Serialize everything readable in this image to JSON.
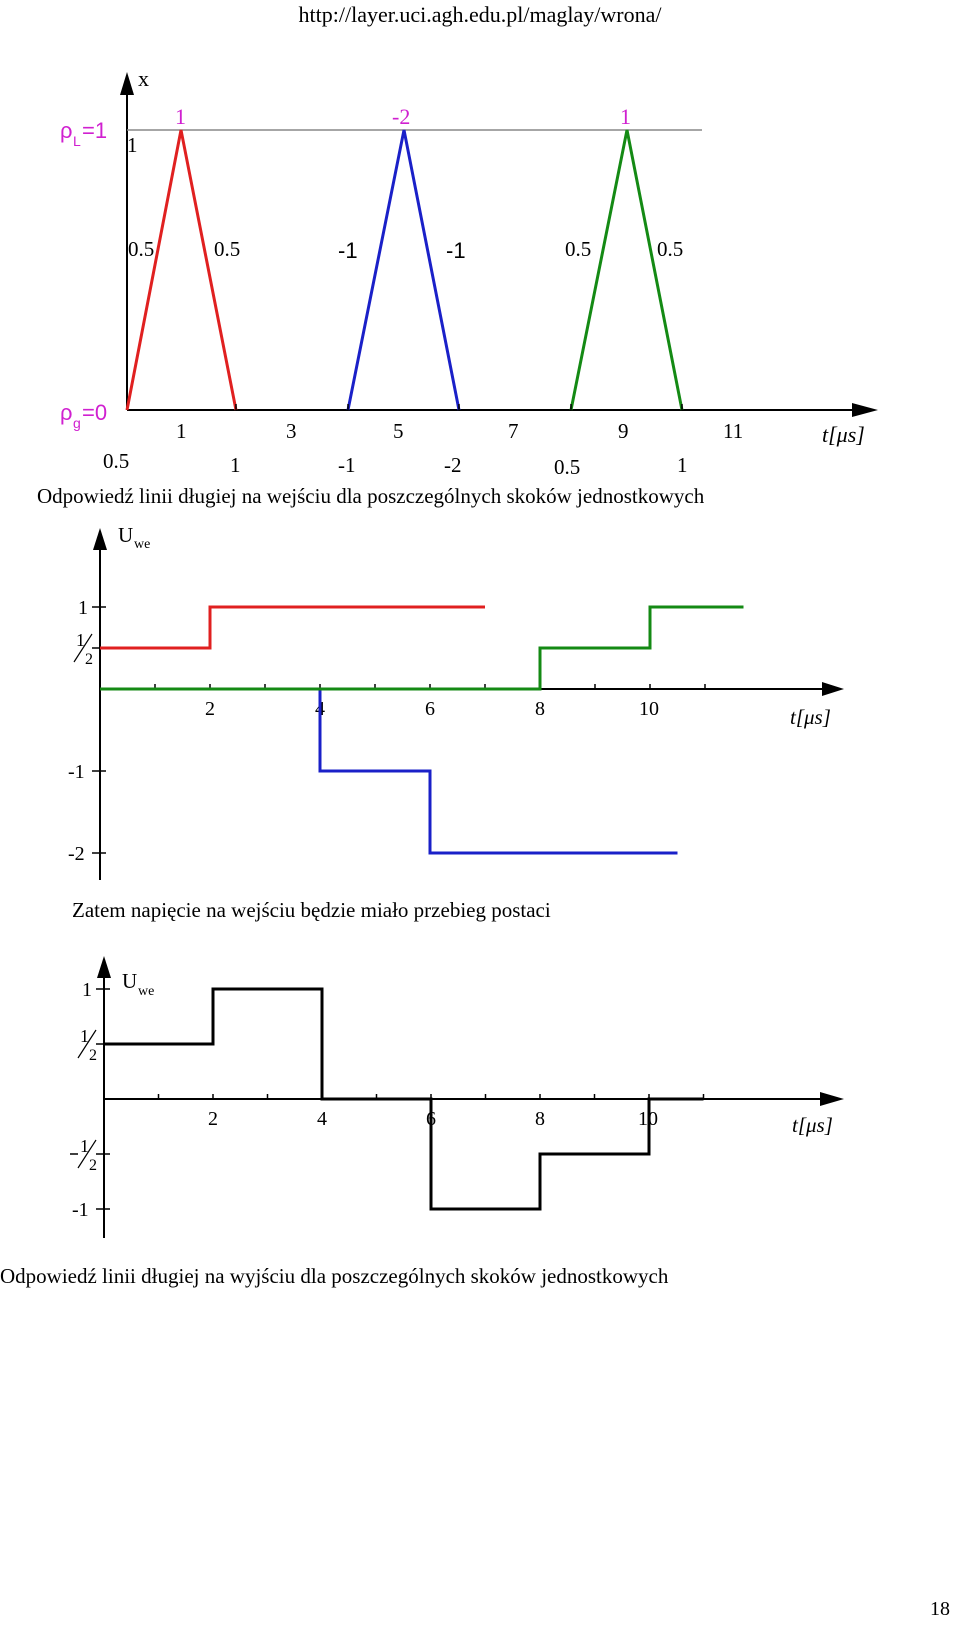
{
  "header": {
    "url": "http://layer.uci.agh.edu.pl/maglay/wrona/"
  },
  "figure1": {
    "ylabel": "x",
    "rhoL": "ρ",
    "rhoL_sub": "L",
    "rhoL_val": "=1",
    "rhoG": "ρ",
    "rhoG_sub": "g",
    "rhoG_val": "=0",
    "y_level": "1",
    "xlabel": "t[μs]",
    "x_ticks": [
      "1",
      "3",
      "5",
      "7",
      "9",
      "11"
    ],
    "peak_labels": [
      "1",
      "-2",
      "1"
    ],
    "mid_labels": [
      "0.5",
      "0.5",
      "-1",
      "-1",
      "0.5",
      "0.5"
    ],
    "bottom_labels": [
      "0.5",
      "1",
      "-1",
      "-2",
      "0.5",
      "1"
    ],
    "colors": {
      "red": "#e02020",
      "blue": "#1a20c8",
      "green": "#148a14",
      "magenta": "#d020d0"
    }
  },
  "caption1": "Odpowiedź linii długiej na wejściu dla poszczególnych skoków jednostkowych",
  "chart_data": [
    {
      "type": "line",
      "title": "",
      "ylabel": "U",
      "ylabel_sub": "we",
      "xlabel": "t[μs]",
      "x_ticks": [
        "2",
        "4",
        "6",
        "8",
        "10"
      ],
      "y_ticks": [
        "1",
        "1/2",
        "-1",
        "-2"
      ],
      "series": [
        {
          "color": "#e02020",
          "points": [
            [
              0,
              0.5
            ],
            [
              2,
              0.5
            ],
            [
              2,
              1
            ],
            [
              7,
              1
            ]
          ]
        },
        {
          "color": "#1a20c8",
          "points": [
            [
              4,
              0
            ],
            [
              4,
              -1
            ],
            [
              6,
              -1
            ],
            [
              6,
              -2
            ],
            [
              10.5,
              -2
            ]
          ]
        },
        {
          "color": "#148a14",
          "points": [
            [
              0,
              0
            ],
            [
              8,
              0
            ],
            [
              8,
              0.5
            ],
            [
              10,
              0.5
            ],
            [
              10,
              1
            ],
            [
              11.7,
              1
            ]
          ]
        }
      ]
    },
    {
      "type": "line",
      "title": "",
      "ylabel": "U",
      "ylabel_sub": "we",
      "xlabel": "t[μs]",
      "x_ticks": [
        "2",
        "4",
        "6",
        "8",
        "10"
      ],
      "y_ticks": [
        "1",
        "1/2",
        "-1/2",
        "-1"
      ],
      "series": [
        {
          "color": "#000000",
          "points": [
            [
              0,
              0.5
            ],
            [
              2,
              0.5
            ],
            [
              2,
              1
            ],
            [
              4,
              1
            ],
            [
              4,
              0
            ],
            [
              6,
              0
            ],
            [
              6,
              -1
            ],
            [
              8,
              -1
            ],
            [
              8,
              -0.5
            ],
            [
              10,
              -0.5
            ],
            [
              10,
              0
            ],
            [
              11,
              0
            ]
          ]
        }
      ]
    }
  ],
  "caption2": "Zatem napięcie na wejściu będzie miało przebieg postaci",
  "caption3": "Odpowiedź linii długiej na wyjściu dla poszczególnych skoków jednostkowych",
  "page_number": "18"
}
